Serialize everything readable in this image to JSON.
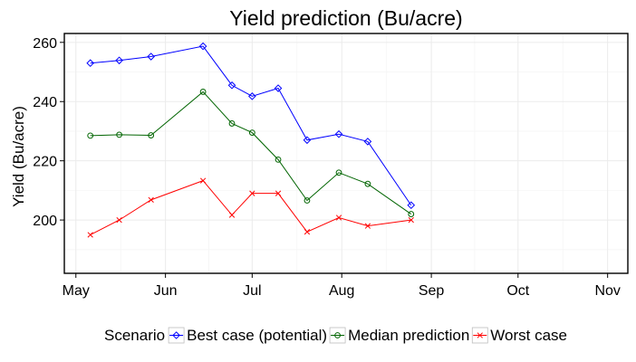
{
  "chart_data": {
    "type": "line",
    "title": "Yield prediction (Bu/acre)",
    "xlabel": "",
    "ylabel": "Yield (Bu/acre)",
    "ylim": [
      182,
      263
    ],
    "yticks": [
      200,
      220,
      240,
      260
    ],
    "xlim": [
      "2017-04-27",
      "2017-11-08"
    ],
    "xticks": [
      {
        "date": "2017-05-01",
        "label": "May"
      },
      {
        "date": "2017-06-01",
        "label": "Jun"
      },
      {
        "date": "2017-07-01",
        "label": "Jul"
      },
      {
        "date": "2017-08-01",
        "label": "Aug"
      },
      {
        "date": "2017-09-01",
        "label": "Sep"
      },
      {
        "date": "2017-10-01",
        "label": "Oct"
      },
      {
        "date": "2017-11-01",
        "label": "Nov"
      }
    ],
    "x": [
      "2017-05-06",
      "2017-05-16",
      "2017-05-27",
      "2017-06-14",
      "2017-06-24",
      "2017-07-01",
      "2017-07-10",
      "2017-07-20",
      "2017-07-31",
      "2017-08-10",
      "2017-08-25"
    ],
    "grid": true,
    "legend_position": "bottom",
    "legend_title": "Scenario",
    "series": [
      {
        "name": "Best case (potential)",
        "color": "#0000ff",
        "marker": "diamond",
        "values": [
          253.0,
          253.9,
          255.2,
          258.7,
          245.5,
          241.8,
          244.5,
          227.0,
          229.0,
          226.5,
          205.0
        ]
      },
      {
        "name": "Median prediction",
        "color": "#006400",
        "marker": "circle",
        "values": [
          228.5,
          228.8,
          228.6,
          243.3,
          232.6,
          229.5,
          220.4,
          206.6,
          216.0,
          212.2,
          202.0
        ]
      },
      {
        "name": "Worst case",
        "color": "#ff0000",
        "marker": "cross",
        "values": [
          195.0,
          200.0,
          206.8,
          213.3,
          201.7,
          209.0,
          209.0,
          196.0,
          200.8,
          198.0,
          200.0
        ]
      }
    ]
  }
}
